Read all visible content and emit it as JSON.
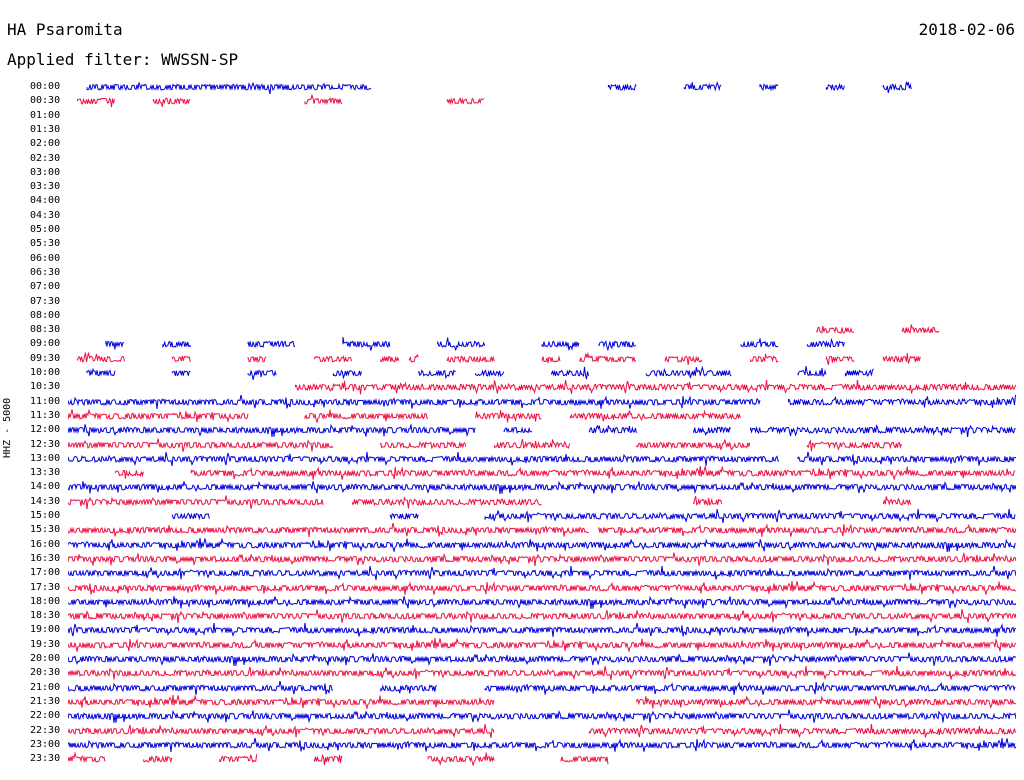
{
  "header": {
    "title": "HA Psaromita",
    "filter": "Applied filter: WWSSN-SP",
    "date": "2018-02-06"
  },
  "channel_label": "HHZ - 5000",
  "colors": {
    "odd": "#0000dd",
    "even": "#ee1144"
  },
  "rows": [
    {
      "time": "00:00",
      "segments": [
        [
          0.02,
          0.32
        ],
        [
          0.57,
          0.6
        ],
        [
          0.65,
          0.69
        ],
        [
          0.73,
          0.75
        ],
        [
          0.8,
          0.82
        ],
        [
          0.86,
          0.89
        ]
      ]
    },
    {
      "time": "00:30",
      "segments": [
        [
          0.01,
          0.05
        ],
        [
          0.09,
          0.13
        ],
        [
          0.25,
          0.29
        ],
        [
          0.4,
          0.44
        ]
      ]
    },
    {
      "time": "01:00",
      "segments": []
    },
    {
      "time": "01:30",
      "segments": []
    },
    {
      "time": "02:00",
      "segments": []
    },
    {
      "time": "02:30",
      "segments": []
    },
    {
      "time": "03:00",
      "segments": []
    },
    {
      "time": "03:30",
      "segments": []
    },
    {
      "time": "04:00",
      "segments": []
    },
    {
      "time": "04:30",
      "segments": []
    },
    {
      "time": "05:00",
      "segments": []
    },
    {
      "time": "05:30",
      "segments": []
    },
    {
      "time": "06:00",
      "segments": []
    },
    {
      "time": "06:30",
      "segments": []
    },
    {
      "time": "07:00",
      "segments": []
    },
    {
      "time": "07:30",
      "segments": []
    },
    {
      "time": "08:00",
      "segments": []
    },
    {
      "time": "08:30",
      "segments": [
        [
          0.79,
          0.83
        ],
        [
          0.88,
          0.92
        ]
      ]
    },
    {
      "time": "09:00",
      "segments": [
        [
          0.04,
          0.06
        ],
        [
          0.1,
          0.13
        ],
        [
          0.19,
          0.24
        ],
        [
          0.29,
          0.34
        ],
        [
          0.39,
          0.44
        ],
        [
          0.5,
          0.54
        ],
        [
          0.56,
          0.6
        ],
        [
          0.71,
          0.75
        ],
        [
          0.78,
          0.82
        ]
      ]
    },
    {
      "time": "09:30",
      "segments": [
        [
          0.01,
          0.06
        ],
        [
          0.11,
          0.13
        ],
        [
          0.19,
          0.21
        ],
        [
          0.26,
          0.3
        ],
        [
          0.33,
          0.35
        ],
        [
          0.36,
          0.37
        ],
        [
          0.4,
          0.45
        ],
        [
          0.5,
          0.52
        ],
        [
          0.54,
          0.6
        ],
        [
          0.63,
          0.67
        ],
        [
          0.72,
          0.75
        ],
        [
          0.8,
          0.83
        ],
        [
          0.86,
          0.9
        ]
      ]
    },
    {
      "time": "10:00",
      "segments": [
        [
          0.02,
          0.05
        ],
        [
          0.11,
          0.13
        ],
        [
          0.19,
          0.22
        ],
        [
          0.28,
          0.31
        ],
        [
          0.37,
          0.41
        ],
        [
          0.43,
          0.46
        ],
        [
          0.51,
          0.55
        ],
        [
          0.61,
          0.7
        ],
        [
          0.77,
          0.8
        ],
        [
          0.82,
          0.85
        ]
      ]
    },
    {
      "time": "10:30",
      "segments": [
        [
          0.24,
          1.0
        ]
      ]
    },
    {
      "time": "11:00",
      "segments": [
        [
          0.0,
          0.73
        ],
        [
          0.76,
          1.0
        ]
      ]
    },
    {
      "time": "11:30",
      "segments": [
        [
          0.0,
          0.19
        ],
        [
          0.25,
          0.38
        ],
        [
          0.43,
          0.5
        ],
        [
          0.53,
          0.71
        ]
      ]
    },
    {
      "time": "12:00",
      "segments": [
        [
          0.0,
          0.43
        ],
        [
          0.46,
          0.49
        ],
        [
          0.55,
          0.6
        ],
        [
          0.66,
          0.7
        ],
        [
          0.72,
          1.0
        ]
      ]
    },
    {
      "time": "12:30",
      "segments": [
        [
          0.0,
          0.28
        ],
        [
          0.33,
          0.42
        ],
        [
          0.45,
          0.53
        ],
        [
          0.6,
          0.72
        ],
        [
          0.78,
          0.88
        ]
      ]
    },
    {
      "time": "13:00",
      "segments": [
        [
          0.0,
          0.75
        ],
        [
          0.77,
          1.0
        ]
      ]
    },
    {
      "time": "13:30",
      "segments": [
        [
          0.05,
          0.08
        ],
        [
          0.13,
          1.0
        ]
      ]
    },
    {
      "time": "14:00",
      "segments": [
        [
          0.0,
          1.0
        ]
      ]
    },
    {
      "time": "14:30",
      "segments": [
        [
          0.0,
          0.27
        ],
        [
          0.3,
          0.5
        ],
        [
          0.66,
          0.69
        ],
        [
          0.86,
          0.89
        ]
      ]
    },
    {
      "time": "15:00",
      "segments": [
        [
          0.11,
          0.15
        ],
        [
          0.34,
          0.37
        ],
        [
          0.44,
          1.0
        ]
      ]
    },
    {
      "time": "15:30",
      "segments": [
        [
          0.0,
          0.55
        ],
        [
          0.56,
          1.0
        ]
      ]
    },
    {
      "time": "16:00",
      "segments": [
        [
          0.0,
          0.38
        ],
        [
          0.38,
          1.0
        ]
      ]
    },
    {
      "time": "16:30",
      "segments": [
        [
          0.0,
          1.0
        ]
      ]
    },
    {
      "time": "17:00",
      "segments": [
        [
          0.0,
          1.0
        ]
      ]
    },
    {
      "time": "17:30",
      "segments": [
        [
          0.0,
          1.0
        ]
      ]
    },
    {
      "time": "18:00",
      "segments": [
        [
          0.0,
          1.0
        ]
      ]
    },
    {
      "time": "18:30",
      "segments": [
        [
          0.0,
          1.0
        ]
      ]
    },
    {
      "time": "19:00",
      "segments": [
        [
          0.0,
          1.0
        ]
      ]
    },
    {
      "time": "19:30",
      "segments": [
        [
          0.0,
          1.0
        ]
      ]
    },
    {
      "time": "20:00",
      "segments": [
        [
          0.0,
          1.0
        ]
      ]
    },
    {
      "time": "20:30",
      "segments": [
        [
          0.0,
          1.0
        ]
      ]
    },
    {
      "time": "21:00",
      "segments": [
        [
          0.0,
          0.28
        ],
        [
          0.33,
          0.39
        ],
        [
          0.44,
          1.0
        ]
      ]
    },
    {
      "time": "21:30",
      "segments": [
        [
          0.0,
          0.45
        ],
        [
          0.6,
          1.0
        ]
      ]
    },
    {
      "time": "22:00",
      "segments": [
        [
          0.0,
          1.0
        ]
      ]
    },
    {
      "time": "22:30",
      "segments": [
        [
          0.0,
          0.45
        ],
        [
          0.55,
          1.0
        ]
      ]
    },
    {
      "time": "23:00",
      "segments": [
        [
          0.0,
          1.0
        ]
      ]
    },
    {
      "time": "23:30",
      "segments": [
        [
          0.0,
          0.04
        ],
        [
          0.08,
          0.11
        ],
        [
          0.16,
          0.2
        ],
        [
          0.26,
          0.29
        ],
        [
          0.38,
          0.45
        ],
        [
          0.52,
          0.57
        ]
      ]
    }
  ]
}
